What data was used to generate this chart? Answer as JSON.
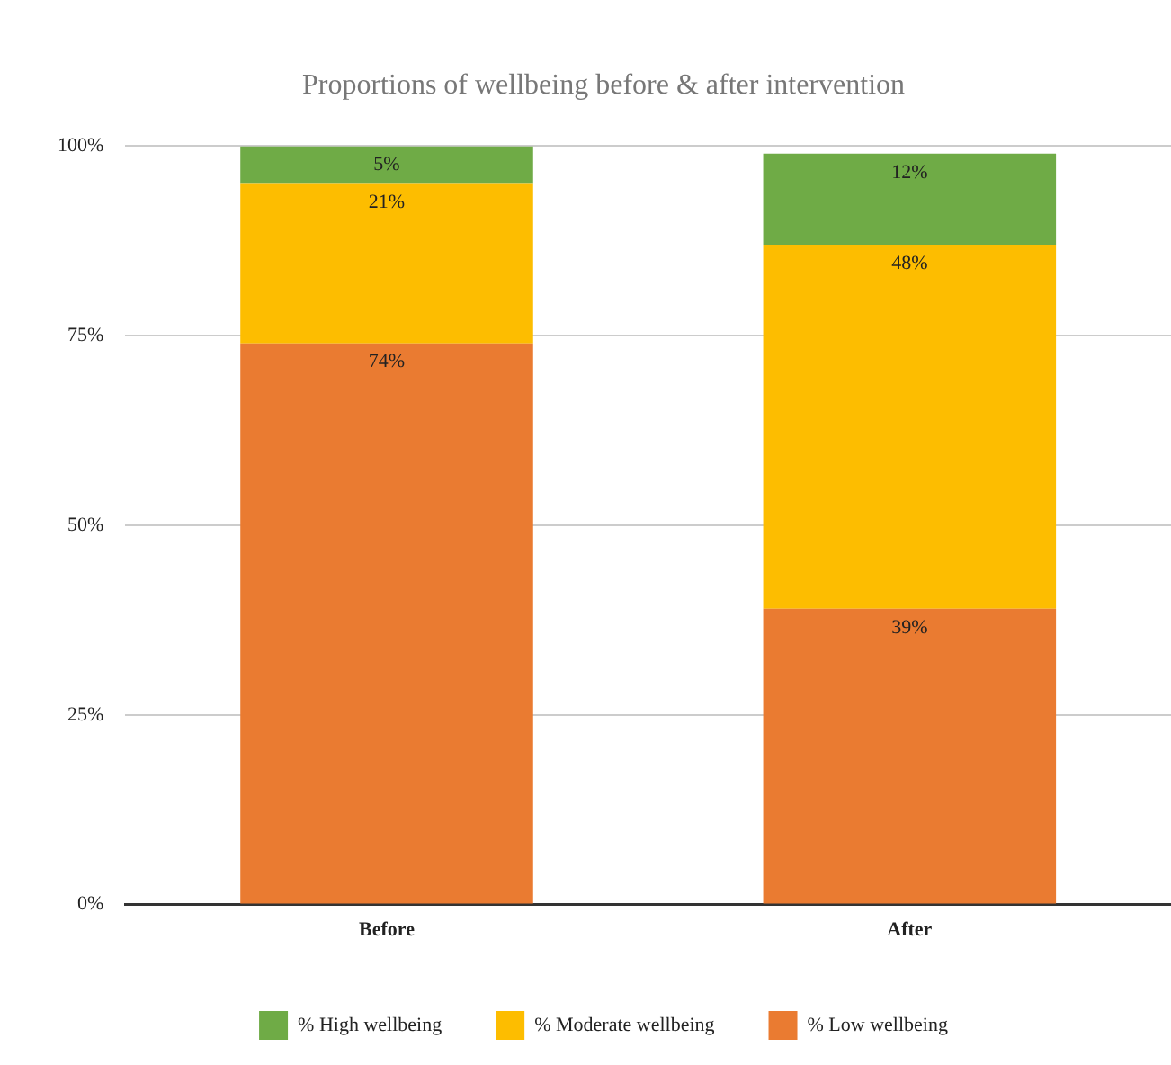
{
  "chart_data": {
    "type": "bar",
    "stacked": true,
    "title": "Proportions of wellbeing before & after intervention",
    "categories": [
      "Before",
      "After"
    ],
    "series": [
      {
        "name": "% Low wellbeing",
        "color": "#ea7b31",
        "values": [
          74,
          39
        ],
        "value_labels": [
          "74%",
          "39%"
        ]
      },
      {
        "name": "% Moderate wellbeing",
        "color": "#fdbd00",
        "values": [
          21,
          48
        ],
        "value_labels": [
          "21%",
          "48%"
        ]
      },
      {
        "name": "% High wellbeing",
        "color": "#6fab46",
        "values": [
          5,
          12
        ],
        "value_labels": [
          "5%",
          "12%"
        ]
      }
    ],
    "ylim": [
      0,
      100
    ],
    "yticks": [
      {
        "value": 0,
        "label": "0%"
      },
      {
        "value": 25,
        "label": "25%"
      },
      {
        "value": 50,
        "label": "50%"
      },
      {
        "value": 75,
        "label": "75%"
      },
      {
        "value": 100,
        "label": "100%"
      }
    ],
    "grid": "y",
    "legend": "bottom"
  }
}
